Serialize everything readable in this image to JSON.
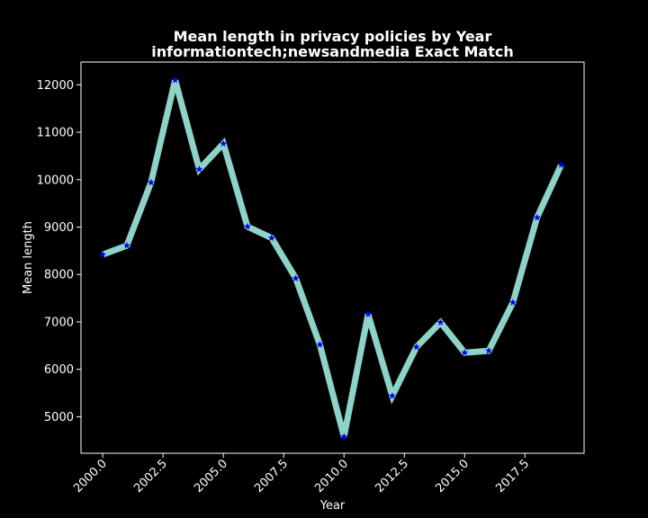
{
  "chart_data": {
    "type": "line",
    "title_line1": "Mean length in privacy policies by Year",
    "title_line2": "informationtech;newsandmedia Exact Match",
    "xlabel": "Year",
    "ylabel": "Mean length",
    "xlim": [
      1999.1,
      2019.95
    ],
    "ylim": [
      4230,
      12480
    ],
    "xticks": [
      2000.0,
      2002.5,
      2005.0,
      2007.5,
      2010.0,
      2012.5,
      2015.0,
      2017.5
    ],
    "xtick_labels": [
      "2000.0",
      "2002.5",
      "2005.0",
      "2007.5",
      "2010.0",
      "2012.5",
      "2015.0",
      "2017.5"
    ],
    "yticks": [
      5000,
      6000,
      7000,
      8000,
      9000,
      10000,
      11000,
      12000
    ],
    "ytick_labels": [
      "5000",
      "6000",
      "7000",
      "8000",
      "9000",
      "10000",
      "11000",
      "12000"
    ],
    "grid": false,
    "line_color": "#8dd3c7",
    "marker_color": "#0000ff",
    "marker": "star",
    "x": [
      2000,
      2001,
      2002,
      2003,
      2004,
      2005,
      2006,
      2007,
      2008,
      2009,
      2010,
      2011,
      2012,
      2013,
      2014,
      2015,
      2016,
      2017,
      2018,
      2019
    ],
    "y": [
      8420,
      8610,
      9940,
      12100,
      10220,
      10760,
      9010,
      8770,
      7920,
      6520,
      4580,
      7160,
      5440,
      6470,
      6990,
      6350,
      6390,
      7410,
      9200,
      10310
    ]
  }
}
